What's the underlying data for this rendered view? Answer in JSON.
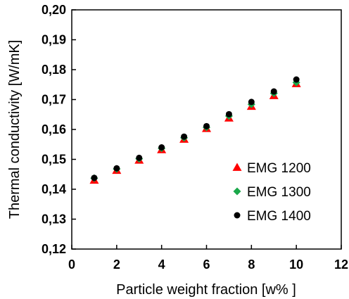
{
  "chart_data": {
    "type": "scatter",
    "title": "",
    "xlabel": "Particle weight fraction [w% ]",
    "ylabel": "Thermal conductivity [W/mK]",
    "xlim": [
      0,
      12
    ],
    "ylim": [
      0.12,
      0.2
    ],
    "xticks": [
      0,
      2,
      4,
      6,
      8,
      10,
      12
    ],
    "xtick_labels": [
      "0",
      "2",
      "4",
      "6",
      "8",
      "10",
      "12"
    ],
    "yticks": [
      0.12,
      0.13,
      0.14,
      0.15,
      0.16,
      0.17,
      0.18,
      0.19,
      0.2
    ],
    "ytick_labels": [
      "0,12",
      "0,13",
      "0,14",
      "0,15",
      "0,16",
      "0,17",
      "0,18",
      "0,19",
      "0,20"
    ],
    "grid": false,
    "legend_position": "bottom-right",
    "series": [
      {
        "name": "EMG 1200",
        "marker": "triangle",
        "color": "#ff0000",
        "x": [
          1,
          2,
          3,
          4,
          5,
          6,
          7,
          8,
          9,
          10
        ],
        "y": [
          0.143,
          0.1463,
          0.1497,
          0.1532,
          0.1567,
          0.1603,
          0.1638,
          0.1677,
          0.1713,
          0.1753
        ]
      },
      {
        "name": "EMG 1300",
        "marker": "diamond",
        "color": "#1aa84a",
        "x": [
          1,
          2,
          3,
          4,
          5,
          6,
          7,
          8,
          9,
          10
        ],
        "y": [
          0.1437,
          0.1468,
          0.1502,
          0.1537,
          0.1572,
          0.1607,
          0.1645,
          0.1684,
          0.1721,
          0.1757
        ]
      },
      {
        "name": "EMG 1400",
        "marker": "circle",
        "color": "#000000",
        "x": [
          1,
          2,
          3,
          4,
          5,
          6,
          7,
          8,
          9,
          10
        ],
        "y": [
          0.1438,
          0.147,
          0.1505,
          0.154,
          0.1576,
          0.1611,
          0.1651,
          0.1692,
          0.1727,
          0.1767
        ]
      }
    ]
  }
}
